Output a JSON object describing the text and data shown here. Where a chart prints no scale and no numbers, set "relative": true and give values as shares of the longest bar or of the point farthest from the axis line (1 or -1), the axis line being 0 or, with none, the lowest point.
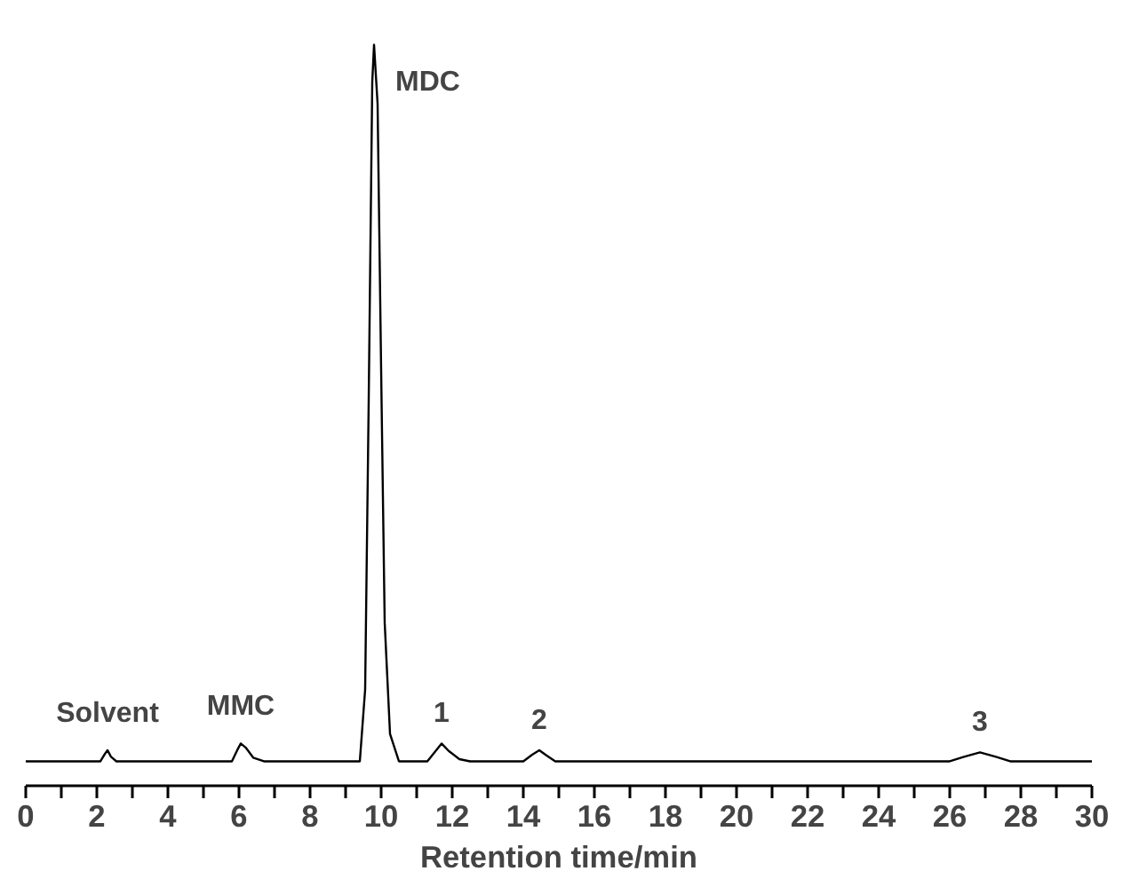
{
  "chart_data": {
    "type": "line",
    "relative": true,
    "xlabel": "Retention time/min",
    "color": "#000000",
    "grid": false,
    "x": [
      0,
      2.1,
      2.2,
      2.3,
      2.4,
      2.55,
      5.8,
      5.95,
      6.05,
      6.2,
      6.4,
      6.7,
      9.4,
      9.55,
      9.65,
      9.75,
      9.8,
      9.9,
      10.0,
      10.1,
      10.25,
      10.5,
      11.3,
      11.5,
      11.7,
      11.9,
      12.2,
      12.5,
      14.0,
      14.25,
      14.45,
      14.65,
      14.9,
      26.0,
      26.4,
      26.85,
      27.3,
      27.7,
      30
    ],
    "values": [
      0.033,
      0.033,
      0.041,
      0.048,
      0.039,
      0.033,
      0.033,
      0.048,
      0.057,
      0.051,
      0.038,
      0.033,
      0.033,
      0.13,
      0.52,
      0.95,
      1.0,
      0.92,
      0.56,
      0.22,
      0.07,
      0.033,
      0.033,
      0.045,
      0.057,
      0.047,
      0.036,
      0.033,
      0.033,
      0.042,
      0.048,
      0.041,
      0.033,
      0.033,
      0.039,
      0.045,
      0.039,
      0.033,
      0.033
    ],
    "xlim": [
      0,
      30
    ],
    "xticks": [
      0,
      {
        "value": 1,
        "label": null
      },
      2,
      {
        "value": 3,
        "label": null
      },
      4,
      {
        "value": 5,
        "label": null
      },
      6,
      {
        "value": 7,
        "label": null
      },
      8,
      {
        "value": 9,
        "label": null
      },
      10,
      {
        "value": 11,
        "label": null
      },
      12,
      {
        "value": 13,
        "label": null
      },
      14,
      {
        "value": 15,
        "label": null
      },
      16,
      {
        "value": 17,
        "label": null
      },
      18,
      {
        "value": 19,
        "label": null
      },
      20,
      {
        "value": 21,
        "label": null
      },
      22,
      {
        "value": 23,
        "label": null
      },
      24,
      {
        "value": 25,
        "label": null
      },
      26,
      {
        "value": 27,
        "label": null
      },
      28,
      {
        "value": 29,
        "label": null
      },
      30
    ],
    "annotations": [
      {
        "text": "Solvent",
        "x": 2.3,
        "y": 0.048
      },
      {
        "text": "MMC",
        "x": 6.05,
        "y": 0.057
      },
      {
        "text": "MDC",
        "x": 9.8,
        "y": 1.0
      },
      {
        "text": "1",
        "x": 11.7,
        "y": 0.057
      },
      {
        "text": "2",
        "x": 14.45,
        "y": 0.048
      },
      {
        "text": "3",
        "x": 26.85,
        "y": 0.045
      }
    ]
  }
}
